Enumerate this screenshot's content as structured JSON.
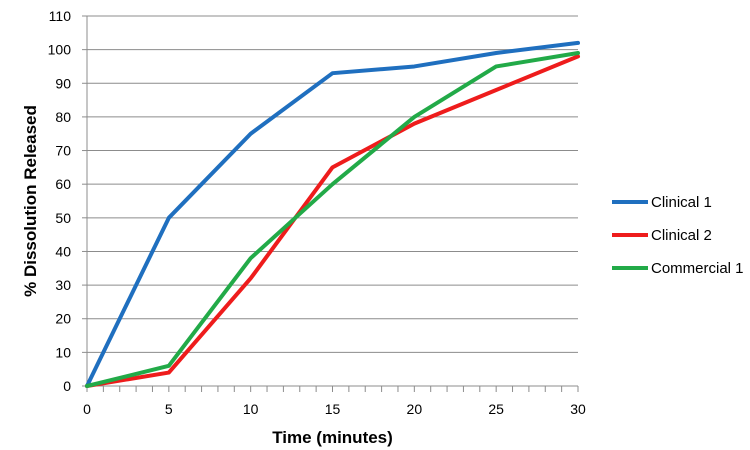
{
  "chart_data": {
    "type": "line",
    "title": "",
    "xlabel": "Time (minutes)",
    "ylabel": "% Dissolution Released",
    "x": [
      0,
      5,
      10,
      15,
      20,
      25,
      30
    ],
    "xlim": [
      0,
      30
    ],
    "ylim": [
      0,
      110
    ],
    "x_ticks": [
      "0",
      "5",
      "10",
      "15",
      "20",
      "25",
      "30"
    ],
    "y_ticks": [
      "0",
      "10",
      "20",
      "30",
      "40",
      "50",
      "60",
      "70",
      "80",
      "90",
      "100",
      "110"
    ],
    "grid": "horizontal",
    "legend_position": "right",
    "series": [
      {
        "name": "Clinical 1",
        "color": "#1f6fbf",
        "values": [
          0,
          50,
          75,
          93,
          95,
          99,
          102
        ]
      },
      {
        "name": "Clinical 2",
        "color": "#ee1c1c",
        "values": [
          0,
          4,
          32,
          65,
          78,
          88,
          98
        ]
      },
      {
        "name": "Commercial 1",
        "color": "#22aa48",
        "values": [
          0,
          6,
          38,
          60,
          80,
          95,
          99
        ]
      }
    ]
  }
}
